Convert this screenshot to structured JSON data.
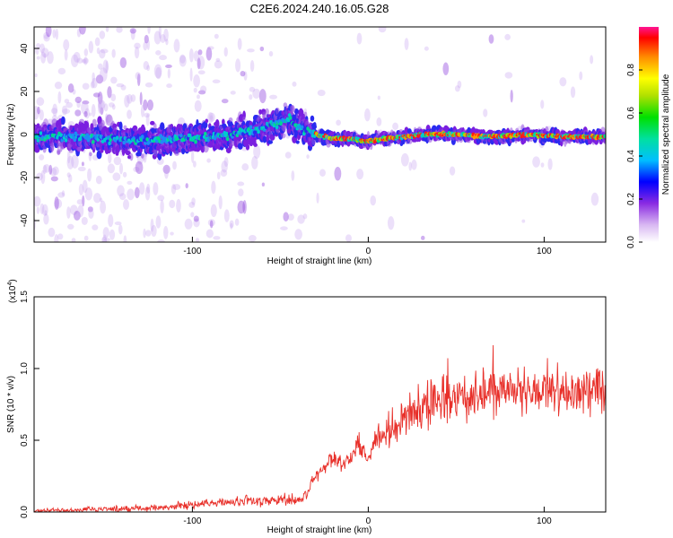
{
  "figure": {
    "title": "C2E6.2024.240.16.05.G28"
  },
  "chart_data": [
    {
      "type": "heatmap",
      "xlabel": "Height of straight line (km)",
      "ylabel": "Frequency (Hz)",
      "xlim": [
        -190,
        135
      ],
      "ylim": [
        -50,
        50
      ],
      "xticks": [
        -100,
        0,
        100
      ],
      "yticks": [
        -40,
        -20,
        0,
        20,
        40
      ],
      "grid": false,
      "colorbar": {
        "label": "Normalized spectral amplitude",
        "range": [
          0,
          1
        ],
        "ticks": [
          "0.0",
          "0.2",
          "0.4",
          "0.6",
          "0.8"
        ]
      },
      "ridge": {
        "x": [
          -190,
          -170,
          -150,
          -130,
          -110,
          -90,
          -75,
          -60,
          -50,
          -45,
          -40,
          -35,
          -30,
          -20,
          -10,
          0,
          10,
          20,
          30,
          50,
          70,
          90,
          110,
          130
        ],
        "y": [
          -1,
          -1,
          -2,
          -3,
          -2,
          -1,
          0,
          3,
          6,
          7,
          4,
          1,
          0,
          -2,
          -2,
          -3,
          -2,
          -1,
          0,
          0,
          -1,
          0,
          -1,
          -1
        ]
      }
    },
    {
      "type": "line",
      "xlabel": "Height of straight line (km)",
      "ylabel": "SNR (10 * v/v)",
      "yscale_label": "(x10",
      "yscale_exp": "4",
      "yscale_suffix": ")",
      "xlim": [
        -190,
        135
      ],
      "ylim": [
        0,
        1.5
      ],
      "xticks": [
        -100,
        0,
        100
      ],
      "yticks": [
        "0.0",
        "0.5",
        "1.0",
        "1.5"
      ],
      "grid": false,
      "color": "#e8302a",
      "series": [
        {
          "x": [
            -190,
            -150,
            -120,
            -100,
            -80,
            -60,
            -50,
            -40,
            -35,
            -32,
            -30,
            -25,
            -20,
            -15,
            -10,
            -5,
            0,
            5,
            10,
            15,
            20,
            30,
            40,
            50,
            60,
            70,
            80,
            90,
            100,
            110,
            120,
            130,
            135
          ],
          "y": [
            0.01,
            0.02,
            0.03,
            0.05,
            0.07,
            0.08,
            0.09,
            0.08,
            0.12,
            0.2,
            0.25,
            0.32,
            0.38,
            0.33,
            0.38,
            0.45,
            0.38,
            0.5,
            0.55,
            0.62,
            0.66,
            0.72,
            0.78,
            0.8,
            0.82,
            0.83,
            0.84,
            0.85,
            0.86,
            0.84,
            0.85,
            0.86,
            0.85
          ]
        }
      ]
    }
  ]
}
